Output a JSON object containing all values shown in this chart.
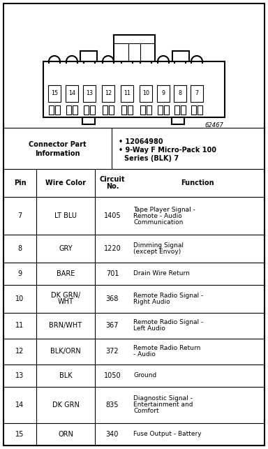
{
  "diagram_id": "62467",
  "col_headers": [
    "Pin",
    "Wire Color",
    "Circuit\nNo.",
    "Function"
  ],
  "rows": [
    [
      "7",
      "LT BLU",
      "1405",
      "Tape Player Signal -\nRemote - Audio\nCommunication"
    ],
    [
      "8",
      "GRY",
      "1220",
      "Dimming Signal\n(except Envoy)"
    ],
    [
      "9",
      "BARE",
      "701",
      "Drain Wire Return"
    ],
    [
      "10",
      "DK GRN/\nWHT",
      "368",
      "Remote Radio Signal -\nRight Audio"
    ],
    [
      "11",
      "BRN/WHT",
      "367",
      "Remote Radio Signal -\nLeft Audio"
    ],
    [
      "12",
      "BLK/ORN",
      "372",
      "Remote Radio Return\n- Audio"
    ],
    [
      "13",
      "BLK",
      "1050",
      "Ground"
    ],
    [
      "14",
      "DK GRN",
      "835",
      "Diagnostic Signal -\nEntertainment and\nComfort"
    ],
    [
      "15",
      "ORN",
      "340",
      "Fuse Output - Battery"
    ]
  ],
  "bg_color": "#ffffff",
  "pin_labels": [
    "15",
    "14",
    "13",
    "12",
    "11",
    "10",
    "9",
    "8",
    "7"
  ],
  "fig_width": 3.84,
  "fig_height": 6.43,
  "dpi": 100
}
